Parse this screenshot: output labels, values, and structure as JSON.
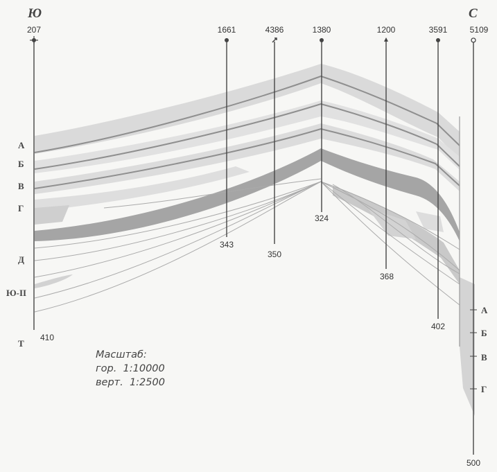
{
  "directions": {
    "left": "Ю",
    "right": "С"
  },
  "wells": [
    {
      "id": "207",
      "bottom_depth": "410"
    },
    {
      "id": "1661",
      "bottom_depth": "343"
    },
    {
      "id": "4386",
      "bottom_depth": "350"
    },
    {
      "id": "1380",
      "bottom_depth": "324"
    },
    {
      "id": "1200",
      "bottom_depth": "368"
    },
    {
      "id": "3591",
      "bottom_depth": "402"
    },
    {
      "id": "5109",
      "bottom_depth": "500"
    }
  ],
  "left_horizons": [
    "А",
    "Б",
    "В",
    "Г",
    "Д",
    "Ю-II",
    "Т"
  ],
  "right_horizons": [
    "А",
    "Б",
    "В",
    "Г"
  ],
  "scale": {
    "title": "Масштаб:",
    "horizontal": "гор.  1:10000",
    "vertical": "верт.  1:2500"
  },
  "colors": {
    "light_fill": "#d9d9d9",
    "dark_fill": "#a8a8a8",
    "line": "#8c8c8c",
    "text": "#333333"
  }
}
